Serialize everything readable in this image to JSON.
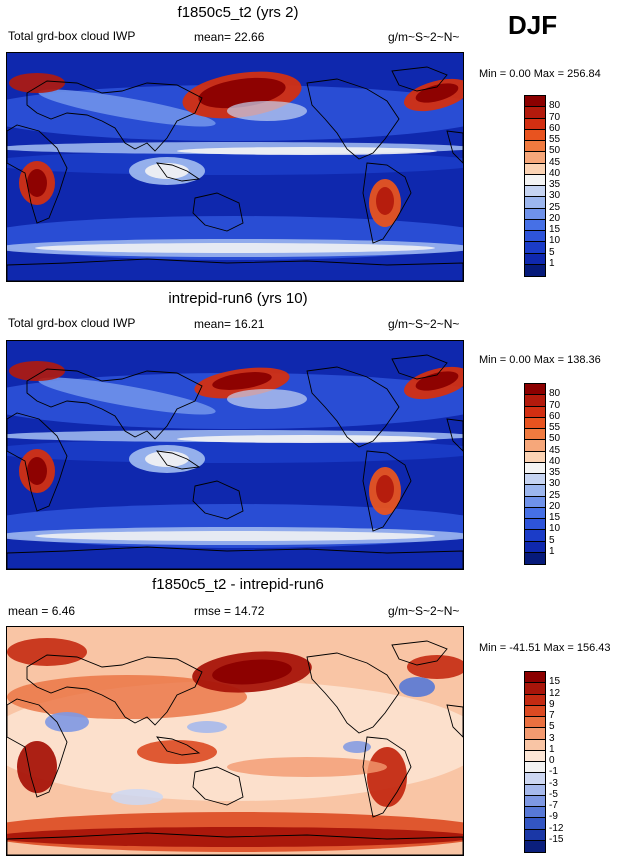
{
  "season": "DJF",
  "chart_data": [
    {
      "type": "heatmap",
      "title": "f1850c5_t2 (yrs 2)",
      "variable": "Total grd-box cloud IWP",
      "stat_label": "mean=",
      "stat_value": "22.66",
      "units": "g/m~S~2~N~",
      "min_label": "Min =",
      "min": "0.00",
      "max_label": "Max =",
      "max": "256.84",
      "levels": [
        "80",
        "70",
        "60",
        "55",
        "50",
        "45",
        "40",
        "35",
        "30",
        "25",
        "20",
        "15",
        "10",
        "5",
        "1"
      ],
      "colors": [
        "#8b0000",
        "#b31a0c",
        "#d22f12",
        "#e8531f",
        "#f07a3f",
        "#f6a77a",
        "#fbd3b4",
        "#f4f4f4",
        "#c6d4f2",
        "#9cb6ee",
        "#6f92ea",
        "#4670e6",
        "#2e54da",
        "#1b3cc8",
        "#0f28ae",
        "#061a7a"
      ],
      "style": "ice"
    },
    {
      "type": "heatmap",
      "title": "intrepid-run6 (yrs 10)",
      "variable": "Total grd-box cloud IWP",
      "stat_label": "mean=",
      "stat_value": "16.21",
      "units": "g/m~S~2~N~",
      "min_label": "Min =",
      "min": "0.00",
      "max_label": "Max =",
      "max": "138.36",
      "levels": [
        "80",
        "70",
        "60",
        "55",
        "50",
        "45",
        "40",
        "35",
        "30",
        "25",
        "20",
        "15",
        "10",
        "5",
        "1"
      ],
      "colors": [
        "#8b0000",
        "#b31a0c",
        "#d22f12",
        "#e8531f",
        "#f07a3f",
        "#f6a77a",
        "#fbd3b4",
        "#f4f4f4",
        "#c6d4f2",
        "#9cb6ee",
        "#6f92ea",
        "#4670e6",
        "#2e54da",
        "#1b3cc8",
        "#0f28ae",
        "#061a7a"
      ],
      "style": "ice2"
    },
    {
      "type": "heatmap",
      "title": "f1850c5_t2 - intrepid-run6",
      "stat_label": "mean =",
      "stat_value": "6.46",
      "stat2_label": "rmse =",
      "stat2_value": "14.72",
      "units": "g/m~S~2~N~",
      "min_label": "Min =",
      "min": "-41.51",
      "max_label": "Max =",
      "max": "156.43",
      "levels": [
        "15",
        "12",
        "9",
        "7",
        "5",
        "3",
        "1",
        "0",
        "-1",
        "-3",
        "-5",
        "-7",
        "-9",
        "-12",
        "-15"
      ],
      "colors": [
        "#8b0000",
        "#a8150a",
        "#c42a12",
        "#dc4a22",
        "#ea7040",
        "#f39a70",
        "#f9c5a5",
        "#fde6d6",
        "#f2f2f2",
        "#cdd7f2",
        "#a6b9ec",
        "#7e98e3",
        "#5778d6",
        "#3356c3",
        "#1a37a6",
        "#0b1f7c"
      ],
      "style": "diff"
    }
  ]
}
